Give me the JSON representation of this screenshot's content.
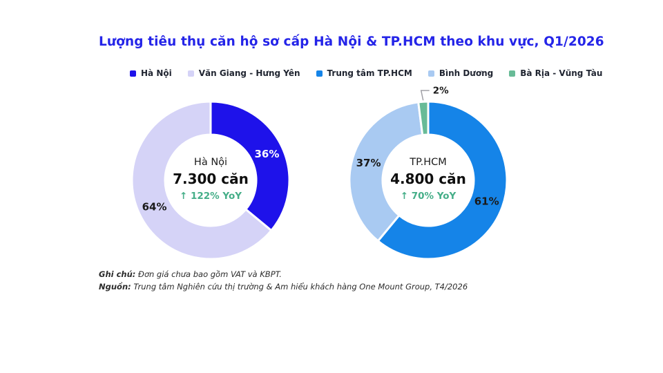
{
  "title": "Lượng tiêu thụ căn hộ sơ cấp Hà Nội & TP.HCM theo khu vực, Q1/2026",
  "colors": {
    "title": "#2424E8",
    "yoy_green": "#45AE88",
    "legend_text": "#1F2430",
    "callout_line": "#A0A0A6",
    "footnote_text": "#2B2B2B",
    "percent_label_dark": "#1A1A1A"
  },
  "legend": [
    {
      "label": "Hà Nội",
      "color": "#1E12EA"
    },
    {
      "label": "Văn Giang - Hưng Yên",
      "color": "#D5D3F7"
    },
    {
      "label": "Trung tâm TP.HCM",
      "color": "#1584E8"
    },
    {
      "label": "Bình Dương",
      "color": "#A9CAF2"
    },
    {
      "label": "Bà Rịa - Vũng Tàu",
      "color": "#68BB97"
    }
  ],
  "chart_data": [
    {
      "type": "pie",
      "title": "Hà Nội",
      "center": {
        "name": "Hà Nội",
        "value": "7.300 căn",
        "yoy": "↑ 122% YoY"
      },
      "total_units": 7300,
      "yoy_percent": 122,
      "slices": [
        {
          "name": "slice-ha-noi",
          "label": "Hà Nội",
          "value": 36,
          "display": "36%",
          "color": "#1E12EA",
          "text_color": "#FFFFFF"
        },
        {
          "name": "slice-van-giang-hung-yen",
          "label": "Văn Giang - Hưng Yên",
          "value": 64,
          "display": "64%",
          "color": "#D5D3F7",
          "text_color": "#1A1A1A"
        }
      ]
    },
    {
      "type": "pie",
      "title": "TP.HCM",
      "center": {
        "name": "TP.HCM",
        "value": "4.800 căn",
        "yoy": "↑ 70% YoY"
      },
      "total_units": 4800,
      "yoy_percent": 70,
      "slices": [
        {
          "name": "slice-trung-tam-tphcm",
          "label": "Trung tâm TP.HCM",
          "value": 61,
          "display": "61%",
          "color": "#1584E8",
          "text_color": "#1A1A1A"
        },
        {
          "name": "slice-binh-duong",
          "label": "Bình Dương",
          "value": 37,
          "display": "37%",
          "color": "#A9CAF2",
          "text_color": "#1A1A1A"
        },
        {
          "name": "slice-ba-ria-vung-tau",
          "label": "Bà Rịa - Vũng Tàu",
          "value": 2,
          "display": "2%",
          "color": "#68BB97",
          "text_color": "#1A1A1A",
          "callout": true
        }
      ]
    }
  ],
  "footnotes": [
    {
      "prefix": "Ghi chú:",
      "text": " Đơn giá chưa bao gồm VAT và KBPT."
    },
    {
      "prefix": "Nguồn:",
      "text": " Trung tâm Nghiên cứu thị trường & Am hiểu khách hàng One Mount Group, T4/2026"
    }
  ]
}
